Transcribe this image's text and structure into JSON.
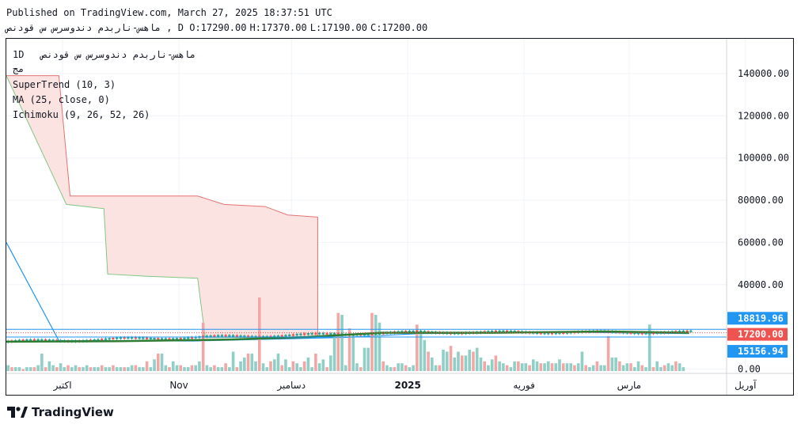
{
  "header": {
    "published": "Published on TradingView.com, March 27, 2025 18:37:51 UTC",
    "symbol_line": "ماهس-ناربدم دندوسرس س قودنص , D",
    "ohlc": [
      "O:17290.00",
      "H:17370.00",
      "L:17190.00",
      "C:17200.00"
    ]
  },
  "legend": {
    "title": "1D   ماهس-ناربدم دندوسرس س قودنص",
    "subtitle": "مج",
    "indicators": [
      "SuperTrend (10, 3)",
      "MA (25, close, 0)",
      "Ichimoku (9, 26, 52, 26)"
    ]
  },
  "branding": {
    "name": "TradingView"
  },
  "colors": {
    "up": "#26a69a",
    "down": "#ef5350",
    "up_vol": "#8fcfc6",
    "down_vol": "#f2a7a6",
    "cloud_fill": "#fbe3e1",
    "cloud_red": "#e57373",
    "cloud_green": "#81c784",
    "ma": "#2e7d32",
    "blue": "#2196f3",
    "price_label": "#ef5350",
    "level_label": "#2196f3"
  },
  "chart_data": {
    "type": "line",
    "title": "",
    "xlabel": "",
    "ylabel": "",
    "ylim": [
      -3000,
      152000
    ],
    "y_ticks": [
      "140000.00",
      "120000.00",
      "100000.00",
      "80000.00",
      "60000.00",
      "40000.00",
      "0.00"
    ],
    "y_tick_values": [
      140000,
      120000,
      100000,
      80000,
      60000,
      40000,
      0
    ],
    "x_labels": [
      "اکتبر",
      "Nov",
      "دسامبر",
      "2025",
      "فوریه",
      "مارس",
      "آوریل"
    ],
    "x_label_days": [
      15,
      46,
      76,
      107,
      138,
      166,
      197
    ],
    "last_price": {
      "label": "17200.00",
      "value": 17200
    },
    "levels": [
      {
        "label": "18819.96",
        "value": 18819.96
      },
      {
        "label": "15156.94",
        "value": 15156.94
      }
    ],
    "series": [
      {
        "name": "Ichimoku Senkou A",
        "points": [
          [
            0,
            139000
          ],
          [
            14,
            139000
          ],
          [
            17,
            82000
          ],
          [
            51,
            82000
          ],
          [
            58,
            78000
          ],
          [
            69,
            77000
          ],
          [
            75,
            73000
          ],
          [
            83,
            72000
          ]
        ]
      },
      {
        "name": "Ichimoku Senkou B",
        "points": [
          [
            0,
            139000
          ],
          [
            16,
            78000
          ],
          [
            26,
            76000
          ],
          [
            27,
            45000
          ],
          [
            37,
            44000
          ],
          [
            51,
            43000
          ],
          [
            53,
            15000
          ],
          [
            83,
            15000
          ]
        ]
      },
      {
        "name": "MA",
        "points": [
          [
            0,
            13000
          ],
          [
            30,
            13200
          ],
          [
            60,
            14000
          ],
          [
            80,
            15200
          ],
          [
            100,
            17200
          ],
          [
            130,
            17200
          ],
          [
            160,
            17800
          ],
          [
            182,
            17200
          ]
        ]
      },
      {
        "name": "SuperTrend",
        "points": [
          [
            0,
            60000
          ],
          [
            14,
            13500
          ],
          [
            50,
            13300
          ],
          [
            90,
            15000
          ],
          [
            110,
            16800
          ],
          [
            150,
            17500
          ],
          [
            182,
            16800
          ]
        ]
      }
    ],
    "volume": [
      3,
      2,
      2,
      2,
      1,
      2,
      2,
      2,
      3,
      9,
      2,
      5,
      3,
      2,
      4,
      2,
      3,
      2,
      3,
      2,
      2,
      3,
      2,
      2,
      2,
      3,
      2,
      2,
      3,
      2,
      2,
      2,
      2,
      3,
      3,
      2,
      2,
      5,
      2,
      6,
      9,
      9,
      3,
      2,
      5,
      3,
      3,
      2,
      2,
      3,
      3,
      5,
      25,
      3,
      2,
      3,
      2,
      2,
      4,
      2,
      10,
      2,
      5,
      7,
      9,
      9,
      5,
      38,
      4,
      2,
      5,
      6,
      9,
      3,
      6,
      2,
      5,
      4,
      2,
      5,
      7,
      2,
      9,
      4,
      6,
      2,
      8,
      20,
      30,
      29,
      3,
      22,
      19,
      4,
      2,
      12,
      12,
      30,
      29,
      25,
      5,
      3,
      2,
      2,
      4,
      4,
      3,
      2,
      3,
      24,
      21,
      16,
      10,
      7,
      3,
      3,
      11,
      10,
      13,
      7,
      10,
      8,
      8,
      11,
      10,
      12,
      7,
      5,
      3,
      6,
      8,
      5,
      4,
      3,
      2,
      5,
      5,
      4,
      4,
      3,
      6,
      5,
      4,
      4,
      5,
      4,
      4,
      6,
      4,
      4,
      4,
      3,
      4,
      10,
      3,
      2,
      3,
      5,
      3,
      3,
      18,
      7,
      7,
      5,
      3,
      4,
      4,
      2,
      5,
      3,
      2,
      24,
      2,
      5,
      2,
      3,
      4,
      3,
      5,
      4,
      2
    ]
  }
}
